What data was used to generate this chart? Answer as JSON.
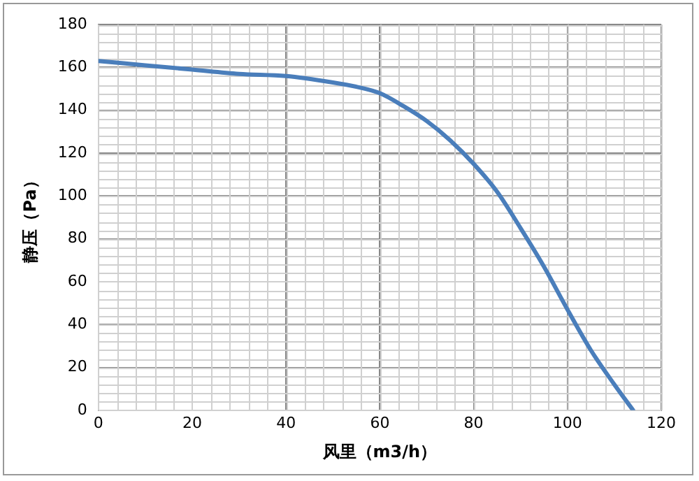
{
  "chart_data": {
    "type": "line",
    "xlabel": "风里（m3/h）",
    "ylabel": "静压（Pa）",
    "series": [
      {
        "color": "#4a7ebb",
        "x": [
          0,
          10,
          20,
          30,
          40,
          50,
          55,
          60,
          65,
          70,
          75,
          80,
          85,
          90,
          95,
          100,
          105,
          110,
          114
        ],
        "values": [
          163,
          161,
          159,
          157,
          156,
          153,
          151,
          148,
          142,
          135,
          126,
          115,
          102,
          85,
          67,
          47,
          28,
          12,
          0
        ]
      }
    ],
    "xlim": [
      0,
      120
    ],
    "xticks": [
      0,
      20,
      40,
      60,
      80,
      100,
      120
    ],
    "ylim": [
      0,
      180
    ],
    "yticks": [
      0,
      20,
      40,
      60,
      80,
      100,
      120,
      140,
      160,
      180
    ],
    "grid": true,
    "legend": false,
    "marker": "none",
    "line_style": "solid"
  }
}
